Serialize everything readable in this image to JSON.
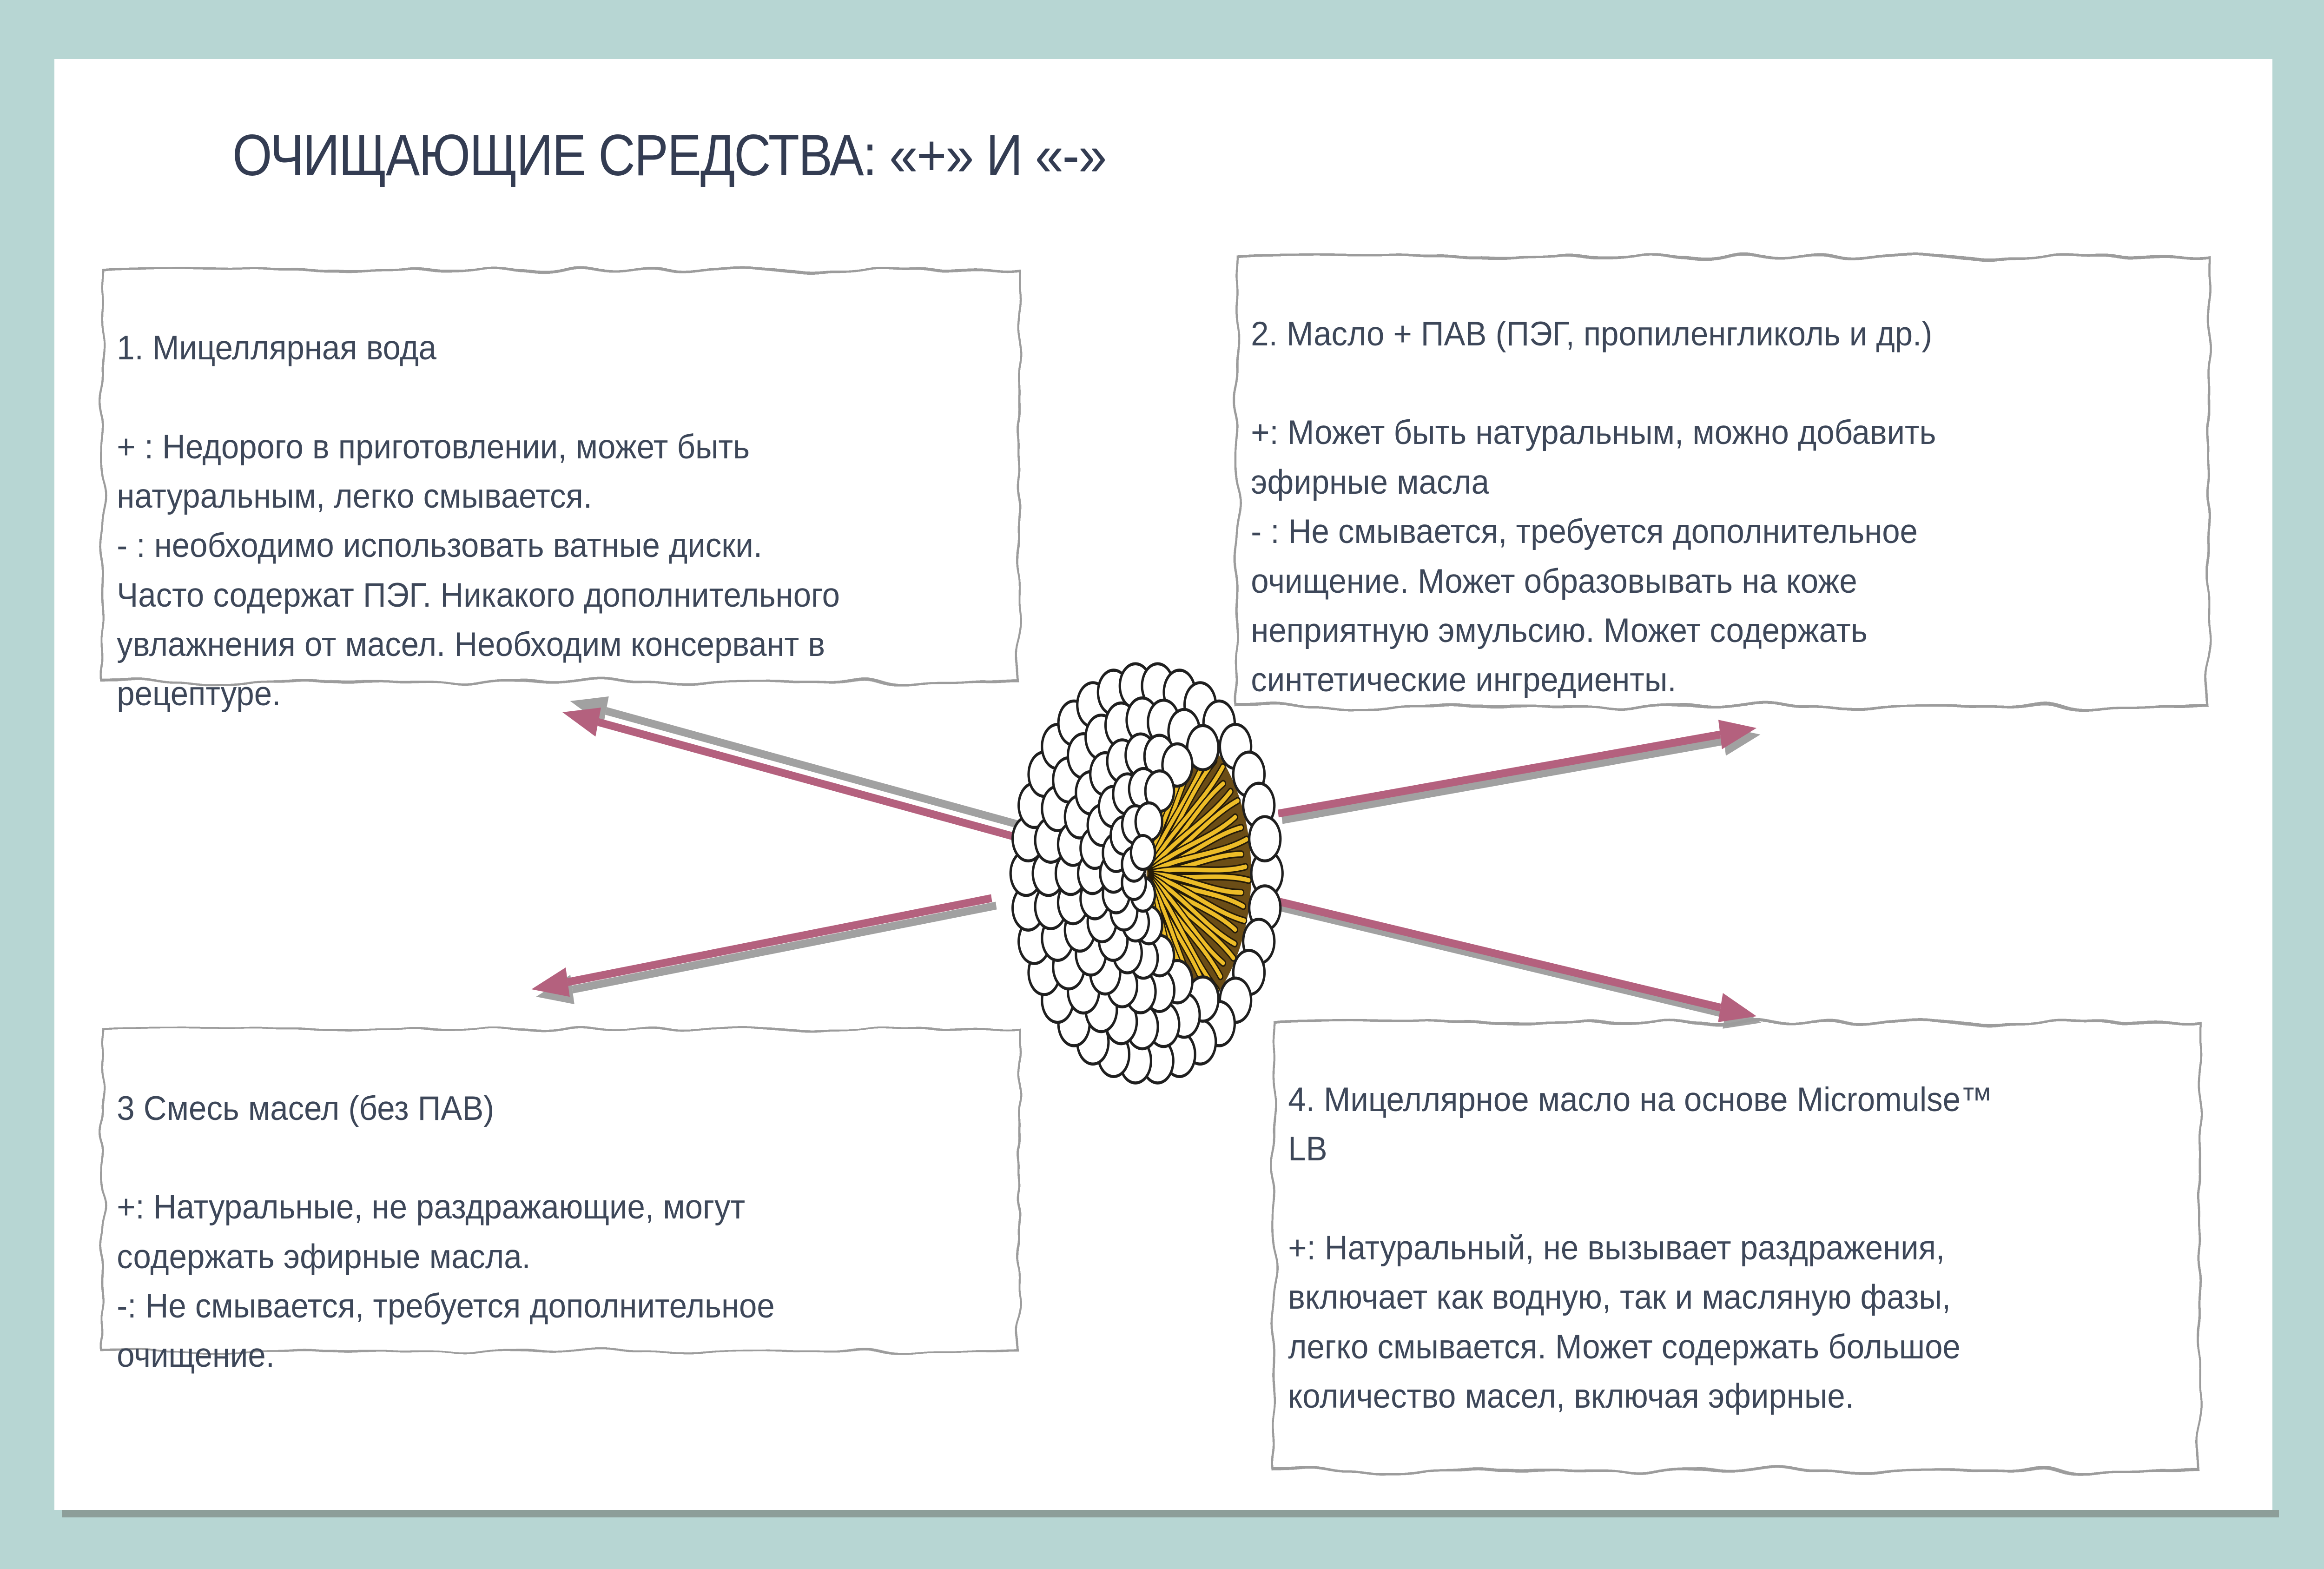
{
  "slide": {
    "title": "ОЧИЩАЮЩИЕ СРЕДСТВА: «+» И «-»",
    "illustration": "micelle-cross-section",
    "boxes": [
      {
        "title": "1. Мицеллярная вода",
        "body": "+ : Недорого в приготовлении, может быть\nнатуральным, легко смывается.\n- : необходимо использовать ватные диски.\nЧасто содержат ПЭГ. Никакого дополнительного\nувлажнения от масел. Необходим консервант в\nрецептуре."
      },
      {
        "title": "2. Масло + ПАВ (ПЭГ, пропиленгликоль и др.)",
        "body": "+: Может быть натуральным, можно добавить\nэфирные масла\n- : Не смывается, требуется дополнительное\nочищение. Может образовывать на коже\nнеприятную эмульсию. Может содержать\nсинтетические ингредиенты."
      },
      {
        "title": "3 Смесь масел (без ПАВ)",
        "body": "+: Натуральные, не раздражающие, могут\nсодержать эфирные масла.\n-: Не смывается, требуется дополнительное\nочищение."
      },
      {
        "title": "4. Мицеллярное масло на основе Micromulse™\nLB",
        "body": "+: Натуральный, не вызывает раздражения,\nвключает как водную, так и масляную фазы,\nлегко смывается. Может содержать большое\nколичество масел, включая эфирные."
      }
    ],
    "colors": {
      "frame": "#b7d6d3",
      "page": "#ffffff",
      "page_shadow": "#8d9e99",
      "title_text": "#333c52",
      "body_text": "#3d4759",
      "box_border": "#9c9c9c",
      "arrow_pink": "#b4617e",
      "arrow_gray": "#a1a1a1",
      "micelle_yellow": "#edbc27",
      "micelle_brown": "#6b4d16",
      "micelle_outline": "#1f1f1f"
    }
  }
}
